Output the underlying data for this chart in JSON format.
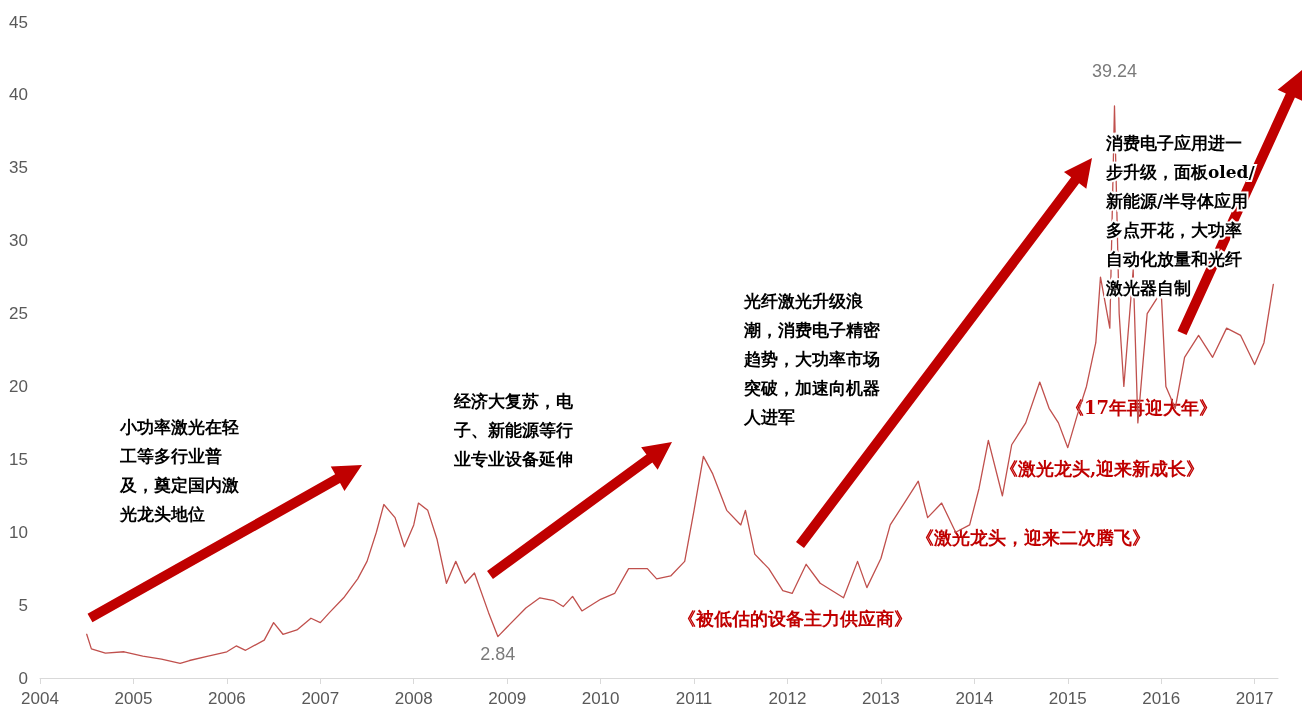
{
  "chart_data": {
    "type": "line",
    "xlim": [
      2004,
      2017.25
    ],
    "xticks": [
      2004,
      2005,
      2006,
      2007,
      2008,
      2009,
      2010,
      2011,
      2012,
      2013,
      2014,
      2015,
      2016,
      2017
    ],
    "ylim": [
      0,
      45
    ],
    "yticks": [
      0,
      5,
      10,
      15,
      20,
      25,
      30,
      35,
      40,
      45
    ],
    "grid": false,
    "marker": "none",
    "line_style": "solid",
    "series": [
      {
        "color": "#c0504d",
        "x": [
          2004.5,
          2004.55,
          2004.7,
          2004.9,
          2005.1,
          2005.3,
          2005.5,
          2005.6,
          2005.8,
          2006.0,
          2006.1,
          2006.2,
          2006.4,
          2006.5,
          2006.6,
          2006.75,
          2006.9,
          2007.0,
          2007.1,
          2007.25,
          2007.4,
          2007.5,
          2007.6,
          2007.68,
          2007.8,
          2007.9,
          2008.0,
          2008.05,
          2008.15,
          2008.25,
          2008.35,
          2008.45,
          2008.55,
          2008.65,
          2008.8,
          2008.9,
          2009.0,
          2009.2,
          2009.35,
          2009.5,
          2009.6,
          2009.7,
          2009.8,
          2010.0,
          2010.15,
          2010.3,
          2010.5,
          2010.6,
          2010.75,
          2010.9,
          2011.0,
          2011.1,
          2011.2,
          2011.35,
          2011.5,
          2011.55,
          2011.65,
          2011.8,
          2011.95,
          2012.05,
          2012.2,
          2012.35,
          2012.6,
          2012.75,
          2012.85,
          2013.0,
          2013.1,
          2013.25,
          2013.4,
          2013.5,
          2013.65,
          2013.8,
          2013.95,
          2014.05,
          2014.15,
          2014.3,
          2014.4,
          2014.55,
          2014.7,
          2014.8,
          2014.9,
          2015.0,
          2015.1,
          2015.2,
          2015.3,
          2015.35,
          2015.45,
          2015.5,
          2015.55,
          2015.6,
          2015.7,
          2015.75,
          2015.85,
          2016.0,
          2016.05,
          2016.15,
          2016.25,
          2016.4,
          2016.55,
          2016.7,
          2016.85,
          2017.0,
          2017.1,
          2017.2
        ],
        "values": [
          3.0,
          2.0,
          1.7,
          1.8,
          1.5,
          1.3,
          1.0,
          1.2,
          1.5,
          1.8,
          2.2,
          1.9,
          2.6,
          3.8,
          3.0,
          3.3,
          4.1,
          3.8,
          4.5,
          5.5,
          6.8,
          8.0,
          10.0,
          11.9,
          11.0,
          9.0,
          10.5,
          12.0,
          11.5,
          9.5,
          6.5,
          8.0,
          6.5,
          7.2,
          4.5,
          2.84,
          3.5,
          4.8,
          5.5,
          5.3,
          4.9,
          5.6,
          4.6,
          5.4,
          5.8,
          7.5,
          7.5,
          6.8,
          7.0,
          8.0,
          11.5,
          15.2,
          14.0,
          11.5,
          10.5,
          11.5,
          8.5,
          7.5,
          6.0,
          5.8,
          7.8,
          6.5,
          5.5,
          8.0,
          6.2,
          8.2,
          10.5,
          12.0,
          13.5,
          11.0,
          12.0,
          10.0,
          10.5,
          13.0,
          16.3,
          12.5,
          16.0,
          17.5,
          20.3,
          18.5,
          17.5,
          15.8,
          18.0,
          20.0,
          23.0,
          27.5,
          24.0,
          39.24,
          25.0,
          20.0,
          28.0,
          17.5,
          25.0,
          26.5,
          20.0,
          18.5,
          22.0,
          23.5,
          22.0,
          24.0,
          23.5,
          21.5,
          23.0,
          27.0
        ]
      }
    ],
    "annotations": [
      {
        "text": "2.84",
        "x": 2008.9,
        "y": 2.84
      },
      {
        "text": "39.24",
        "x": 2015.5,
        "y": 39.24
      },
      "小功率激光在轻工等多行业普及，奠定国内激光龙头地位",
      "经济大复苏，电子、新能源等行业专业设备延伸",
      "光纤激光升级浪潮，消费电子精密趋势，大功率市场突破，加速向机器人进军",
      "消费电子应用进一步升级，面板oled/新能源/半导体应用多点开花，大功率自动化放量和光纤激光器自制",
      "《被低估的设备主力供应商》",
      "《激光龙头，迎来二次腾飞》",
      "《激光龙头,迎来新成长》",
      "《17年再迎大年》"
    ]
  }
}
